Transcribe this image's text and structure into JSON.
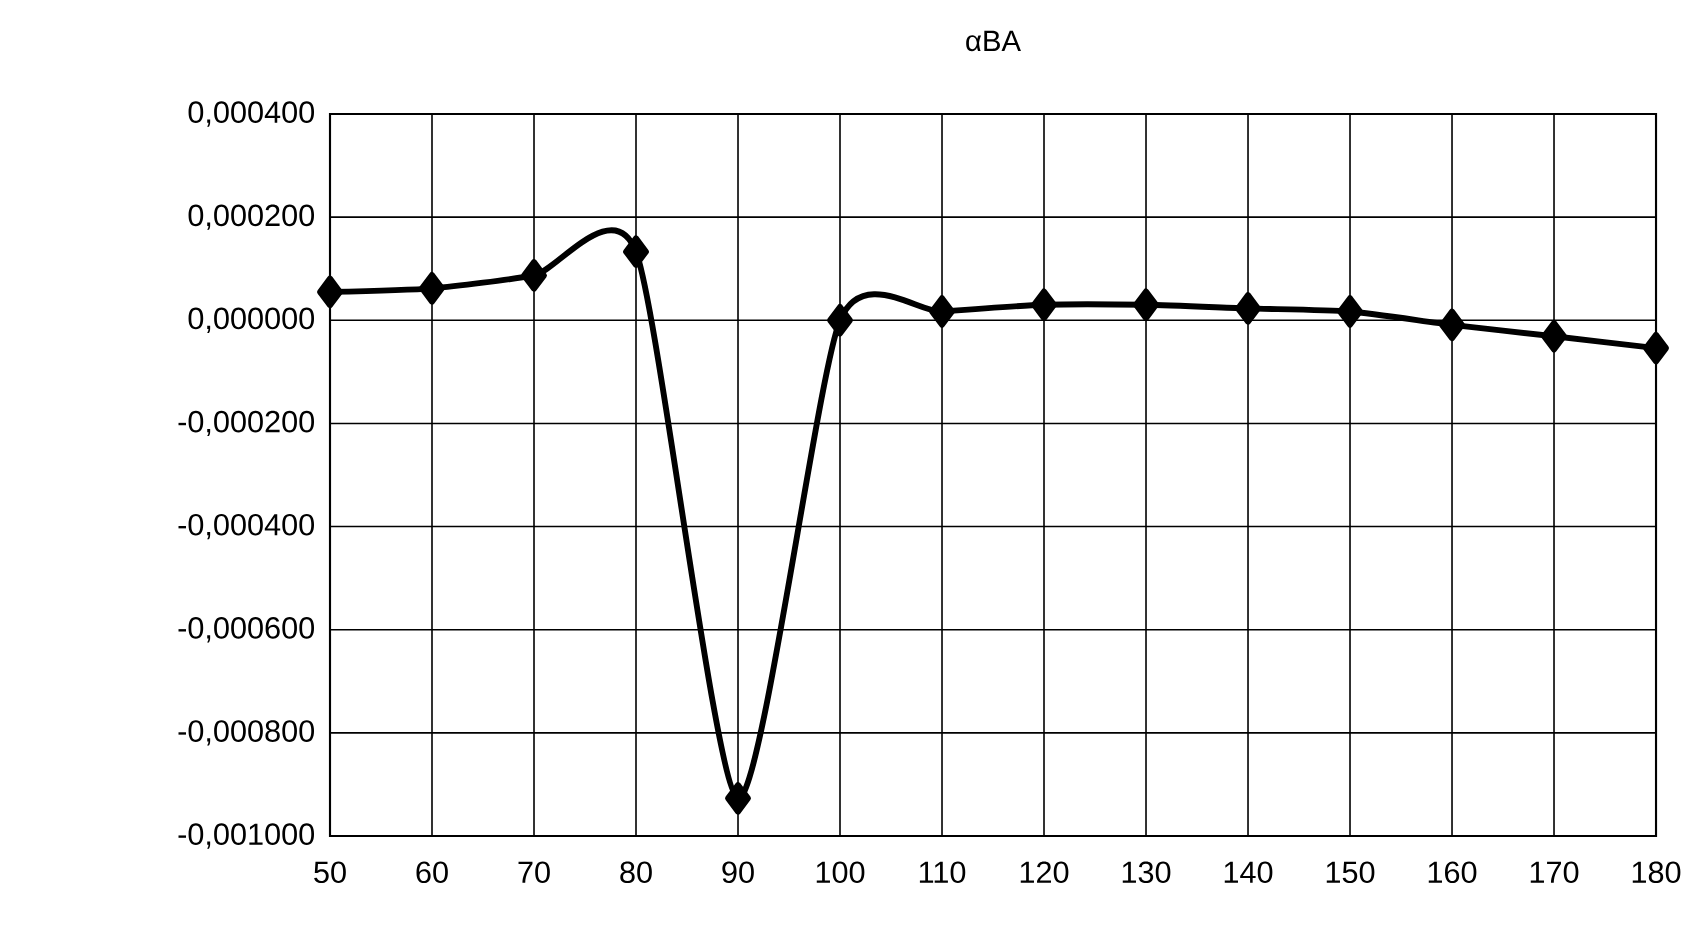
{
  "chart_data": {
    "type": "line",
    "title": "αBA",
    "x": [
      50,
      60,
      70,
      80,
      90,
      100,
      110,
      120,
      130,
      140,
      150,
      160,
      170,
      180
    ],
    "series": [
      {
        "color": "#000000",
        "values": [
          5.5e-05,
          6.2e-05,
          8.7e-05,
          0.000133,
          -0.000927,
          0.0,
          1.7e-05,
          3e-05,
          3e-05,
          2.3e-05,
          1.7e-05,
          -9e-06,
          -3.1e-05,
          -5.4e-05
        ]
      }
    ],
    "xlim": [
      50,
      180
    ],
    "xticks": [
      50,
      60,
      70,
      80,
      90,
      100,
      110,
      120,
      130,
      140,
      150,
      160,
      170,
      180
    ],
    "ylim": [
      -0.001,
      0.0004
    ],
    "yticks": [
      {
        "value": -0.001,
        "label": "-0,001000"
      },
      {
        "value": -0.0008,
        "label": "-0,000800"
      },
      {
        "value": -0.0006,
        "label": "-0,000600"
      },
      {
        "value": -0.0004,
        "label": "-0,000400"
      },
      {
        "value": -0.0002,
        "label": "-0,000200"
      },
      {
        "value": 0.0,
        "label": "0,000000"
      },
      {
        "value": 0.0002,
        "label": "0,000200"
      },
      {
        "value": 0.0004,
        "label": "0,000400"
      }
    ],
    "grid": true,
    "marker": "diamond",
    "line_style": "solid"
  }
}
